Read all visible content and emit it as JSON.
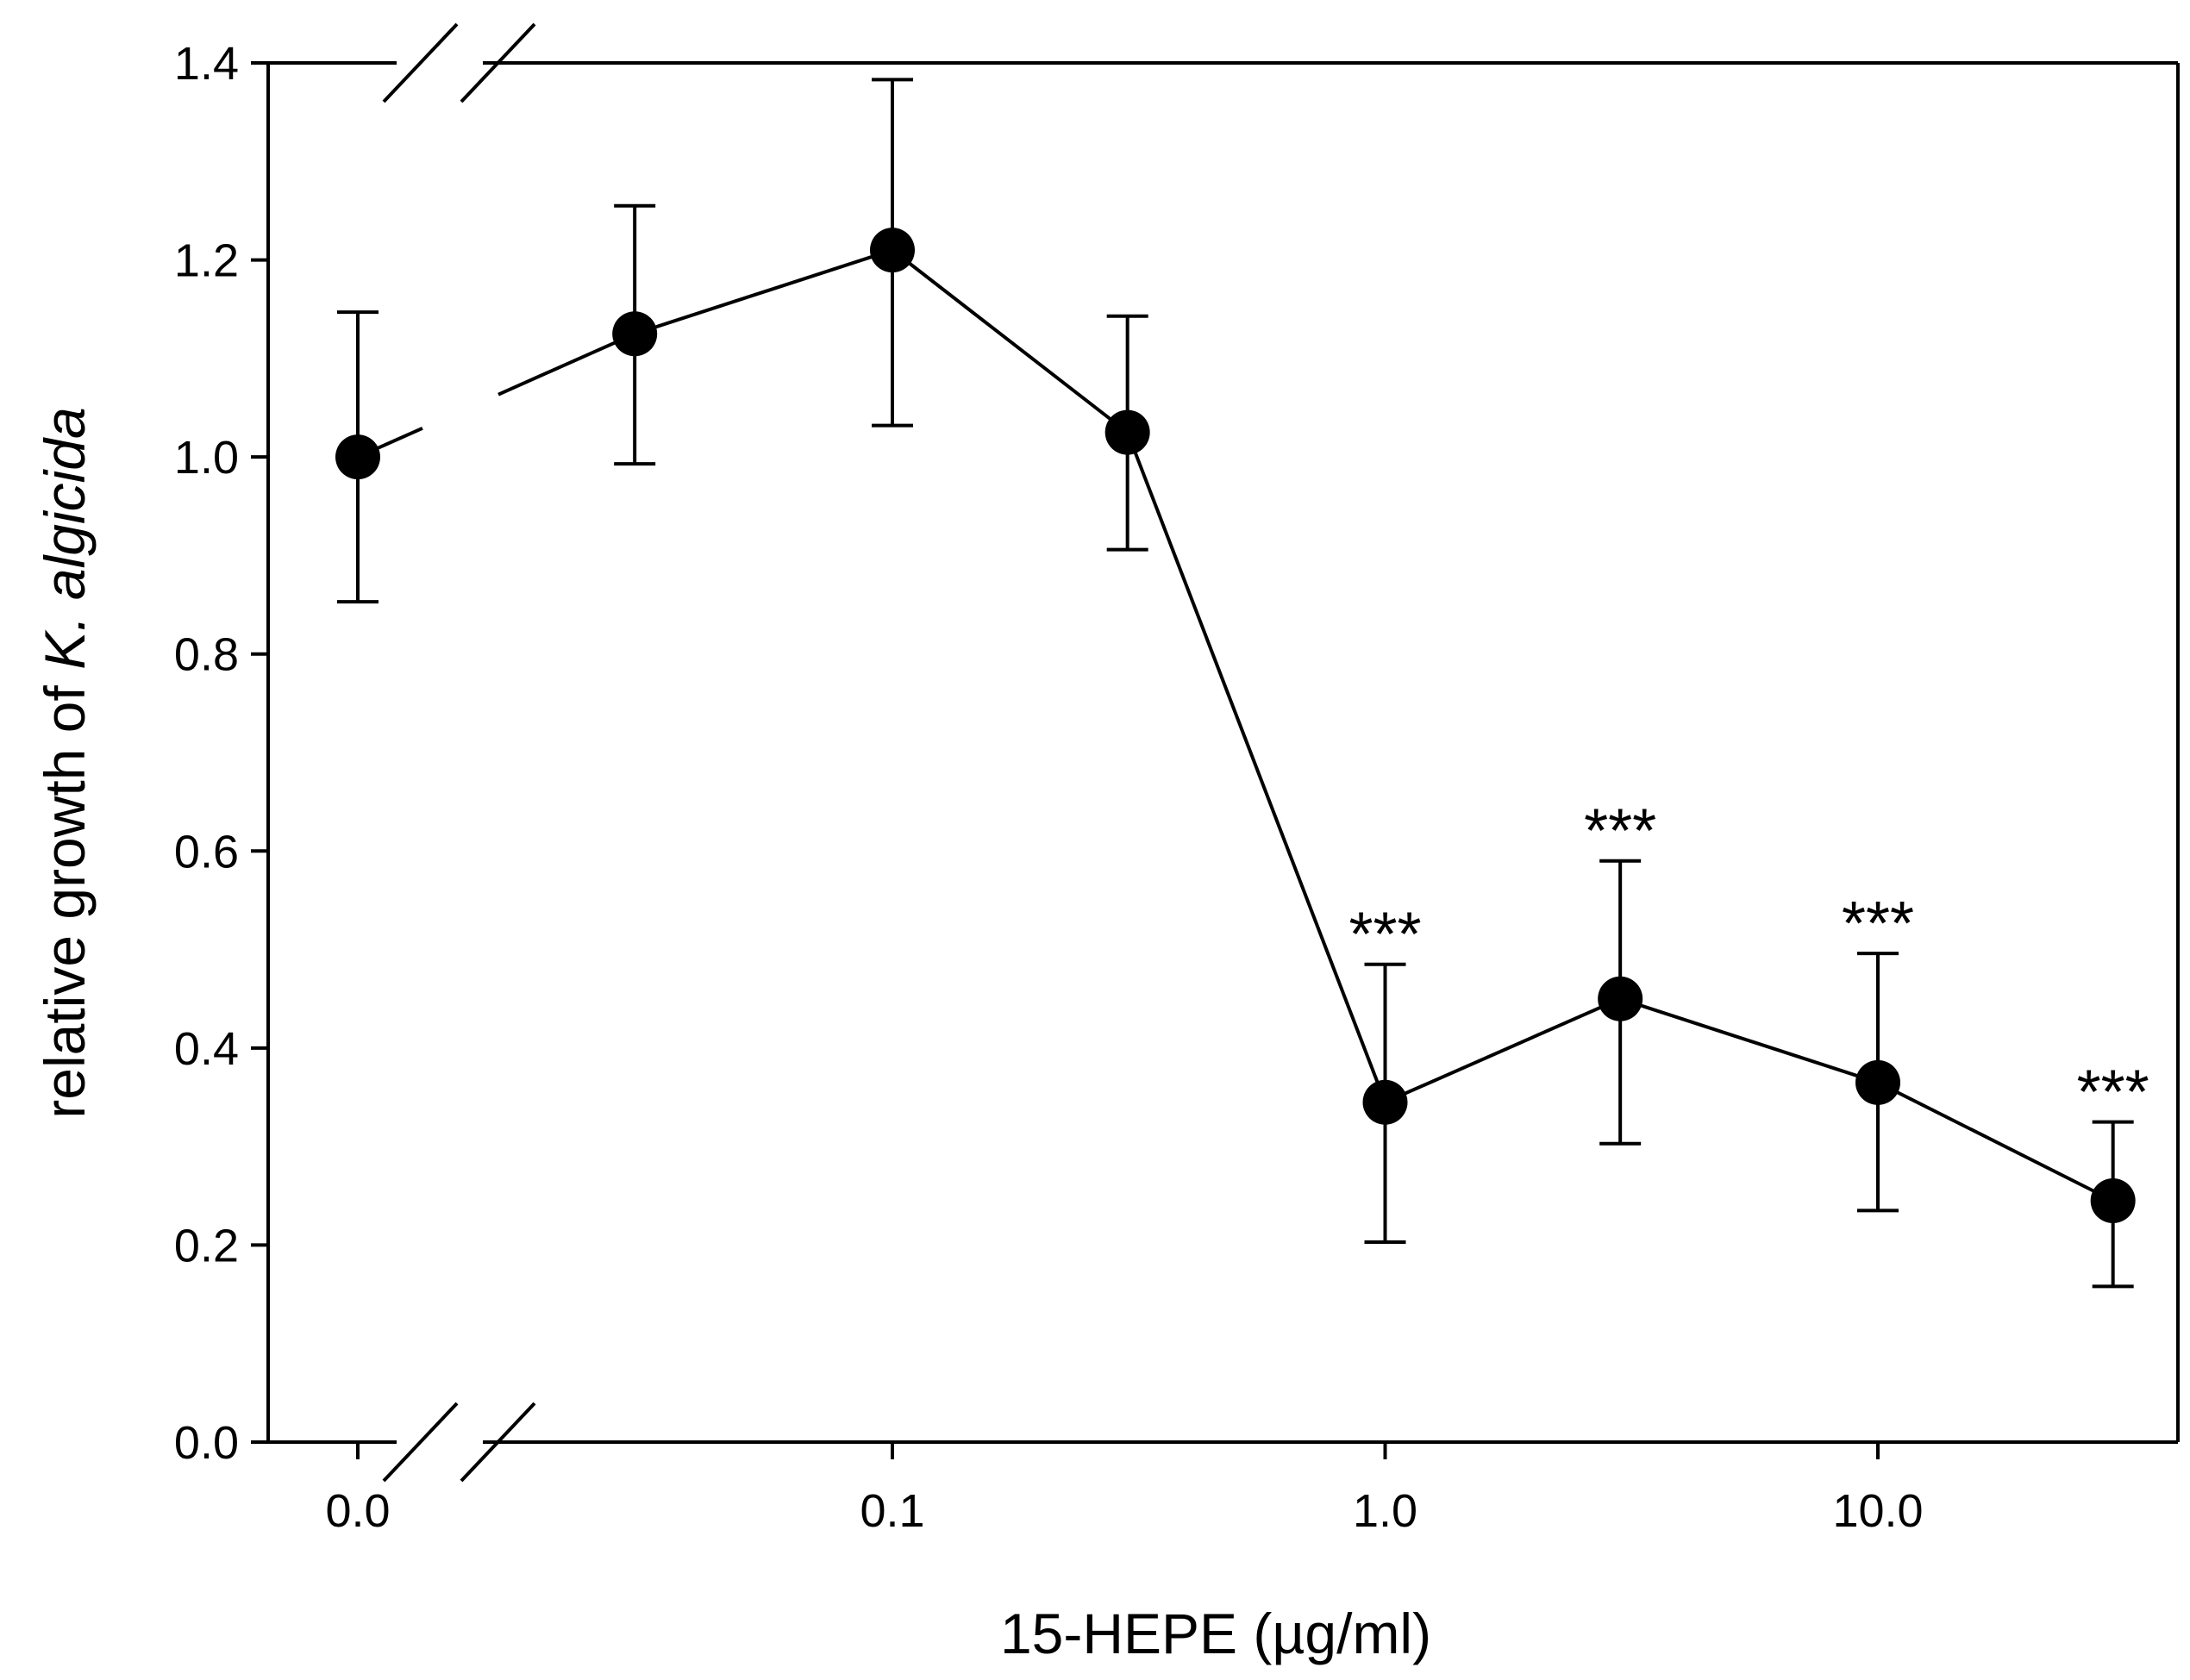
{
  "chart_data": {
    "type": "line",
    "title": "",
    "xlabel": "15-HEPE (µg/ml)",
    "ylabel": {
      "prefix": "relative growth of ",
      "italic": "K. algicida"
    },
    "x_scale": "log",
    "axis_break": "between 0.0 and the first nonzero concentration, on both horizontal frame edges",
    "x_tick_labels": [
      "0.0",
      "0.1",
      "1.0",
      "10.0"
    ],
    "x_tick_values": [
      0,
      0.1,
      1,
      10
    ],
    "y_tick_labels": [
      "0.0",
      "0.2",
      "0.4",
      "0.6",
      "0.8",
      "1.0",
      "1.2",
      "1.4"
    ],
    "y_tick_values": [
      0,
      0.2,
      0.4,
      0.6,
      0.8,
      1.0,
      1.2,
      1.4
    ],
    "ylim": [
      0,
      1.4
    ],
    "grid": false,
    "legend": "none",
    "series": [
      {
        "marker": "filled-circle",
        "color": "#000000",
        "x": [
          0,
          0.03,
          0.1,
          0.3,
          1,
          3,
          10,
          30
        ],
        "y": [
          1.0,
          1.125,
          1.21,
          1.025,
          0.345,
          0.45,
          0.365,
          0.245
        ],
        "error_upper": [
          1.147,
          1.255,
          1.383,
          1.143,
          0.485,
          0.59,
          0.496,
          0.325
        ],
        "error_lower": [
          0.853,
          0.993,
          1.032,
          0.906,
          0.203,
          0.303,
          0.235,
          0.158
        ],
        "annotations": [
          "",
          "",
          "",
          "",
          "***",
          "***",
          "***",
          "***"
        ]
      }
    ]
  }
}
